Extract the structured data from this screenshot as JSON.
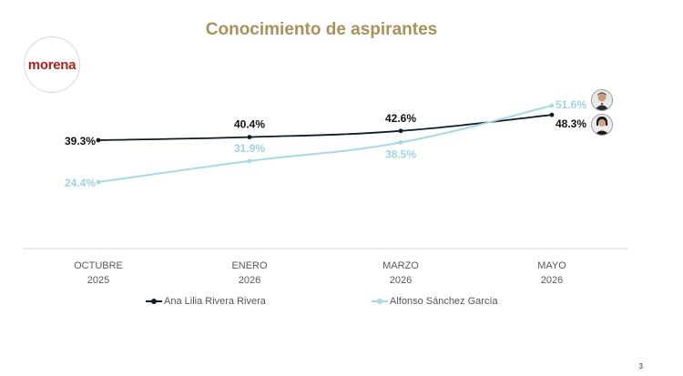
{
  "title": "Conocimiento de aspirantes",
  "logo_text": "morena",
  "colors": {
    "title": "#a8925a",
    "logo": "#a8231e",
    "series1": "#0d1b2a",
    "series2": "#a7d8e6",
    "axis": "#d9d9d9",
    "ticks": "#595959"
  },
  "page_number": "3",
  "icons": {
    "avatar1": "man-portrait-icon",
    "avatar2": "woman-portrait-icon"
  },
  "chart_data": {
    "type": "line",
    "categories": [
      [
        "OCTUBRE",
        "2025"
      ],
      [
        "ENERO",
        "2026"
      ],
      [
        "MARZO",
        "2026"
      ],
      [
        "MAYO",
        "2026"
      ]
    ],
    "series": [
      {
        "name": "Ana Lilia Rivera Rivera",
        "values": [
          39.3,
          40.4,
          42.6,
          48.3
        ],
        "labels": [
          "39.3%",
          "40.4%",
          "42.6%",
          "48.3%"
        ]
      },
      {
        "name": "Alfonso Sánchez García",
        "values": [
          24.4,
          31.9,
          38.5,
          51.6
        ],
        "labels": [
          "24.4%",
          "31.9%",
          "38.5%",
          "51.6%"
        ]
      }
    ],
    "legend": "bottom",
    "grid": false
  }
}
